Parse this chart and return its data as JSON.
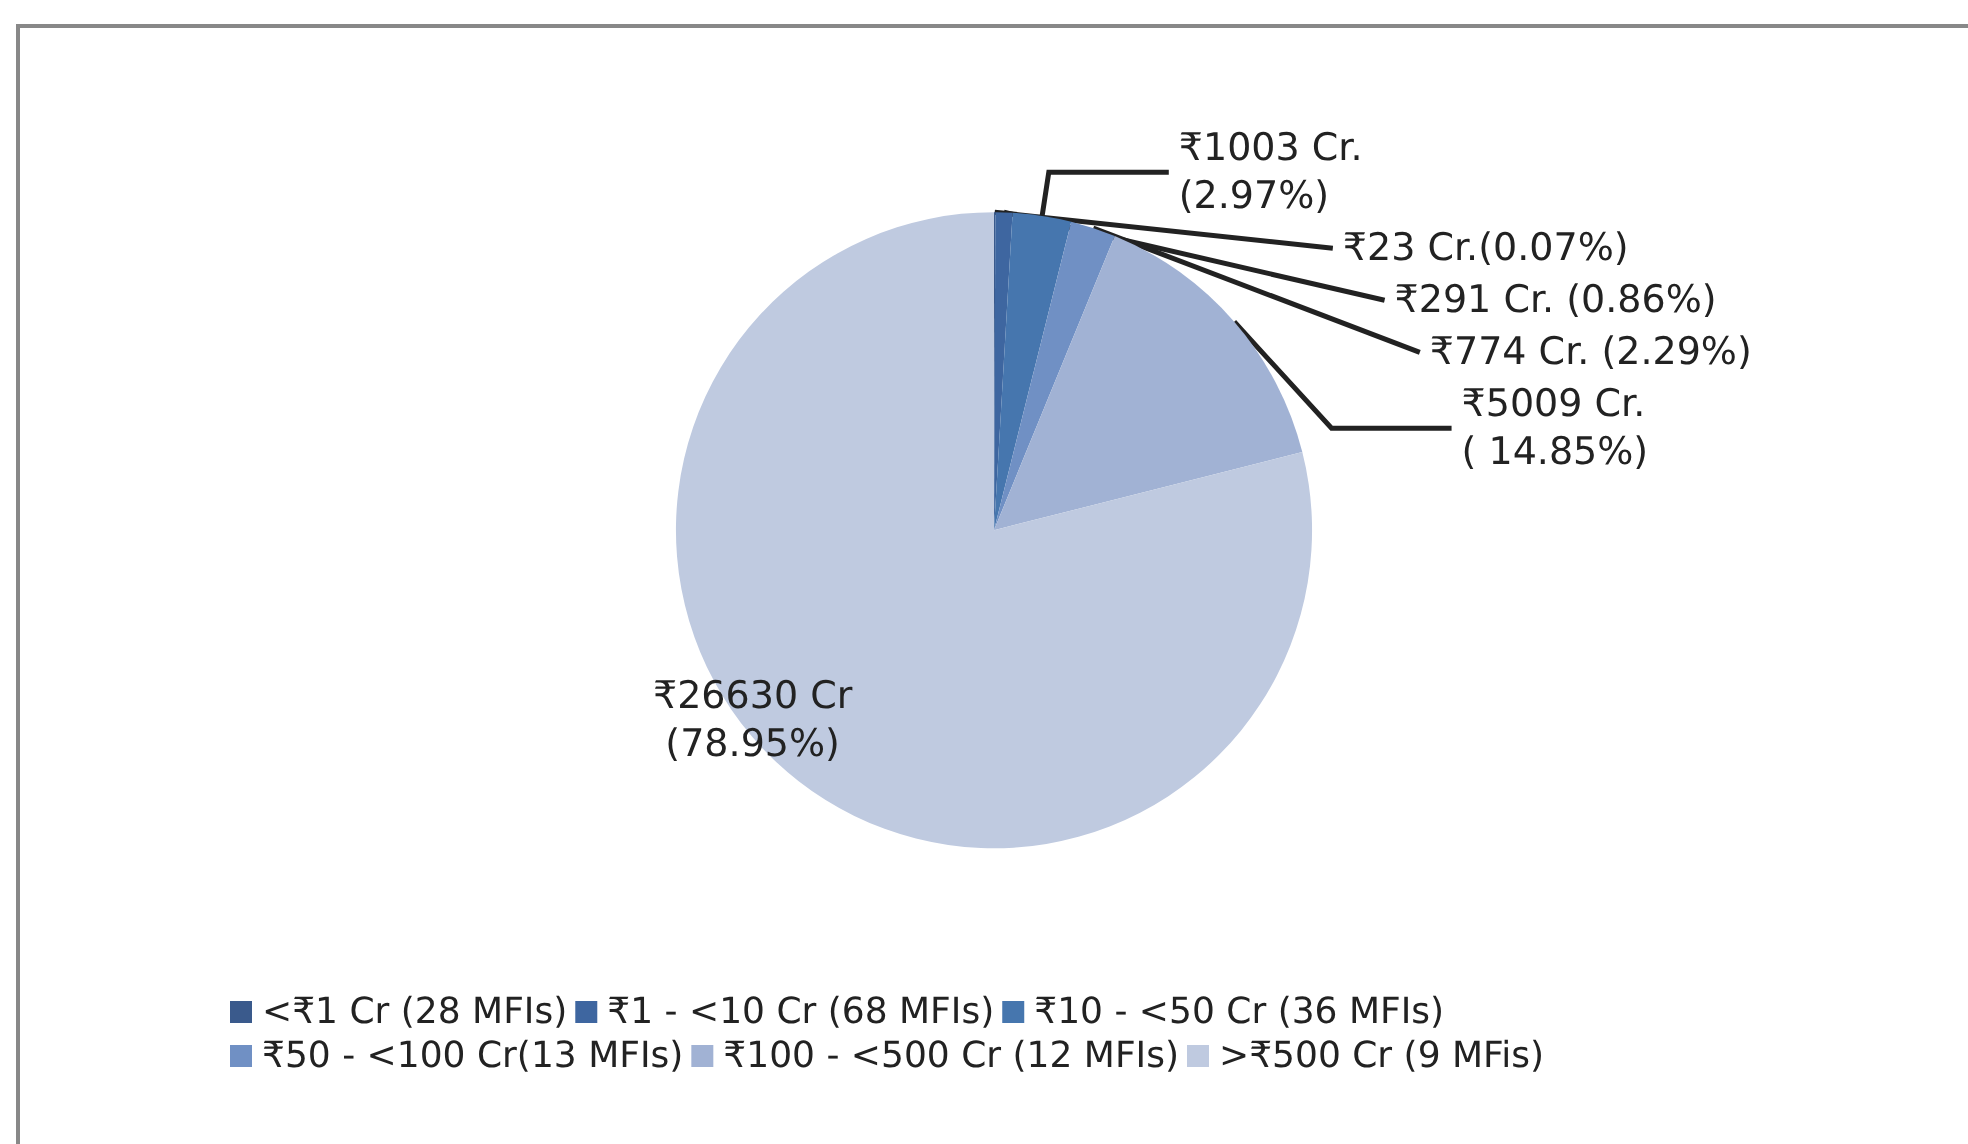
{
  "chart_data": {
    "type": "pie",
    "categories": [
      "<₹1 Cr (28 MFIs)",
      "₹1 - <10 Cr (68 MFIs)",
      "₹10 - <50 Cr (36 MFIs)",
      "₹50 - <100 Cr(13 MFIs)",
      "₹100 - <500 Cr (12 MFIs)",
      ">₹500 Cr (9 MFis)"
    ],
    "values": [
      23,
      291,
      1003,
      774,
      5009,
      26630
    ],
    "value_labels": [
      "₹23 Cr.(0.07%)",
      "₹291 Cr. (0.86%)",
      "₹1003 Cr.\n(2.97%)",
      "₹774 Cr. (2.29%)",
      "₹5009 Cr.\n( 14.85%)",
      "₹26630 Cr\n(78.95%)"
    ],
    "colors": [
      "#3a5a8c",
      "#3e66a0",
      "#4676ae",
      "#7090c4",
      "#a1b2d4",
      "#bfcae0"
    ],
    "legend": "bottom"
  }
}
